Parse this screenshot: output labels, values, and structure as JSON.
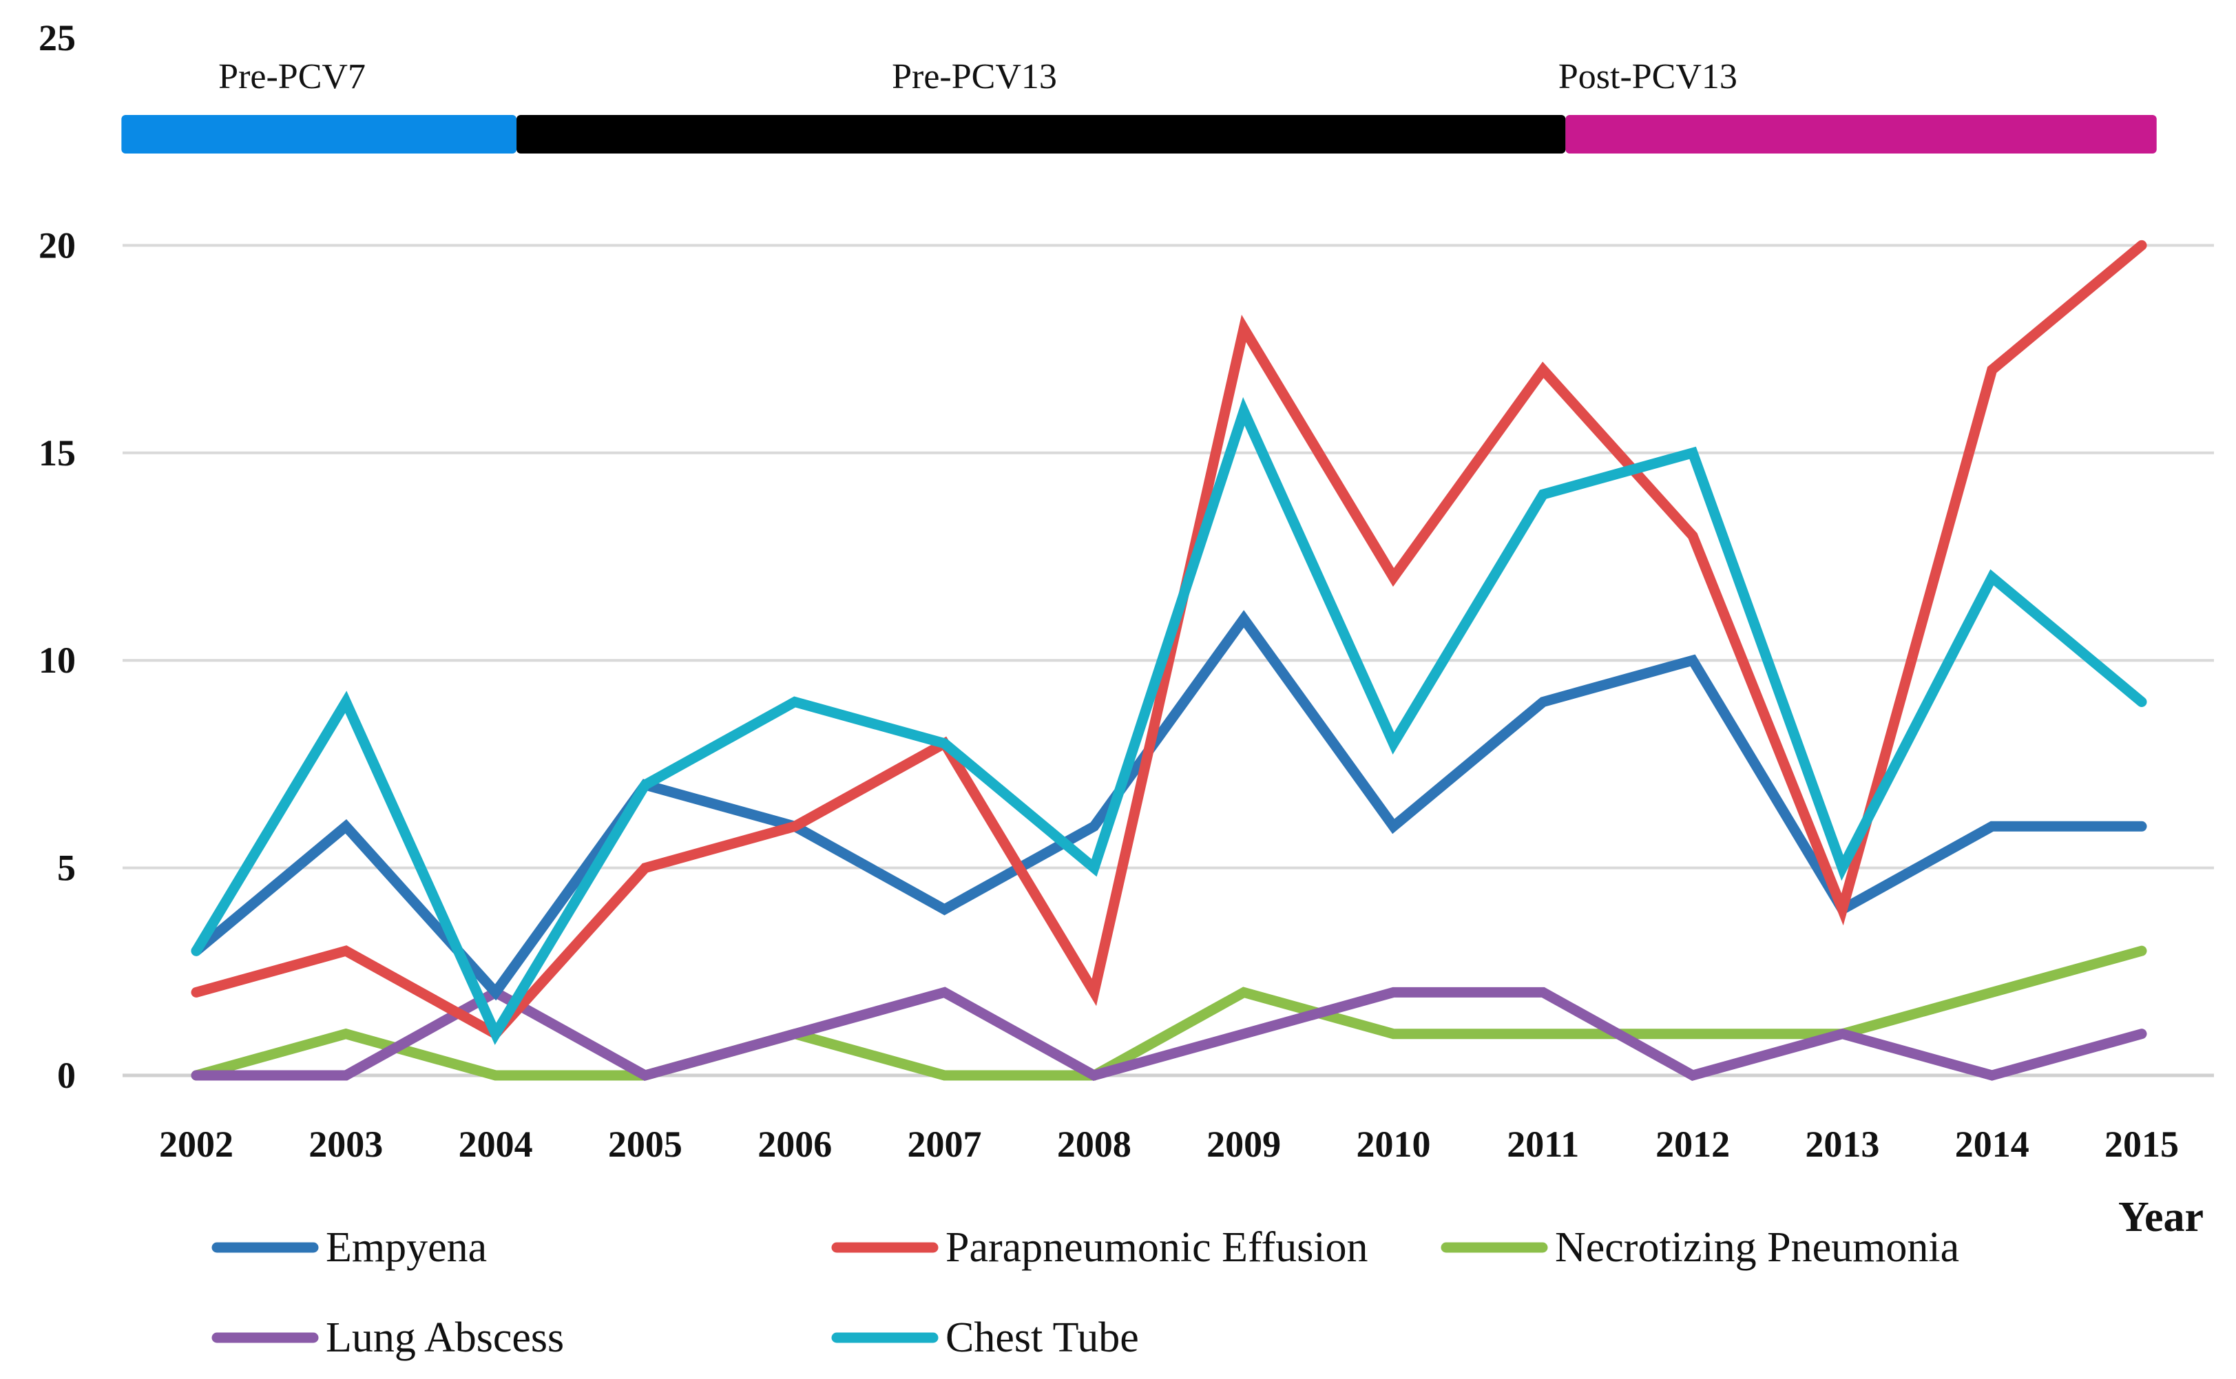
{
  "chart_data": {
    "type": "line",
    "title": "",
    "xlabel": "Year",
    "ylabel": "",
    "ylim": [
      0,
      25
    ],
    "yticks": [
      0,
      5,
      10,
      15,
      20,
      25
    ],
    "grid": true,
    "legend_position": "bottom",
    "categories": [
      "2002",
      "2003",
      "2004",
      "2005",
      "2006",
      "2007",
      "2008",
      "2009",
      "2010",
      "2011",
      "2012",
      "2013",
      "2014",
      "2015"
    ],
    "series": [
      {
        "name": "Empyena",
        "color": "#2E75B6",
        "values": [
          3,
          6,
          2,
          7,
          6,
          4,
          6,
          11,
          6,
          9,
          10,
          4,
          6,
          6
        ]
      },
      {
        "name": "Parapneumonic Effusion",
        "color": "#E04B4A",
        "values": [
          2,
          3,
          1,
          5,
          6,
          8,
          2,
          18,
          12,
          17,
          13,
          4,
          17,
          20
        ]
      },
      {
        "name": "Necrotizing Pneumonia",
        "color": "#8CBF4A",
        "values": [
          0,
          1,
          0,
          0,
          1,
          0,
          0,
          2,
          1,
          1,
          1,
          1,
          2,
          3
        ]
      },
      {
        "name": "Lung Abscess",
        "color": "#8A5BA8",
        "values": [
          0,
          0,
          2,
          0,
          1,
          2,
          0,
          1,
          2,
          2,
          0,
          1,
          0,
          1
        ]
      },
      {
        "name": "Chest Tube",
        "color": "#19AFC8",
        "values": [
          3,
          9,
          1,
          7,
          9,
          8,
          5,
          16,
          8,
          14,
          15,
          5,
          12,
          9
        ]
      }
    ],
    "periods": [
      {
        "label": "Pre-PCV7",
        "start": 2001.5,
        "end": 2004.14,
        "color": "#0A8AE6"
      },
      {
        "label": "Pre-PCV13",
        "start": 2004.14,
        "end": 2011.15,
        "color": "#000000"
      },
      {
        "label": "Post-PCV13",
        "start": 2011.15,
        "end": 2015.1,
        "color": "#C8198F"
      }
    ]
  }
}
